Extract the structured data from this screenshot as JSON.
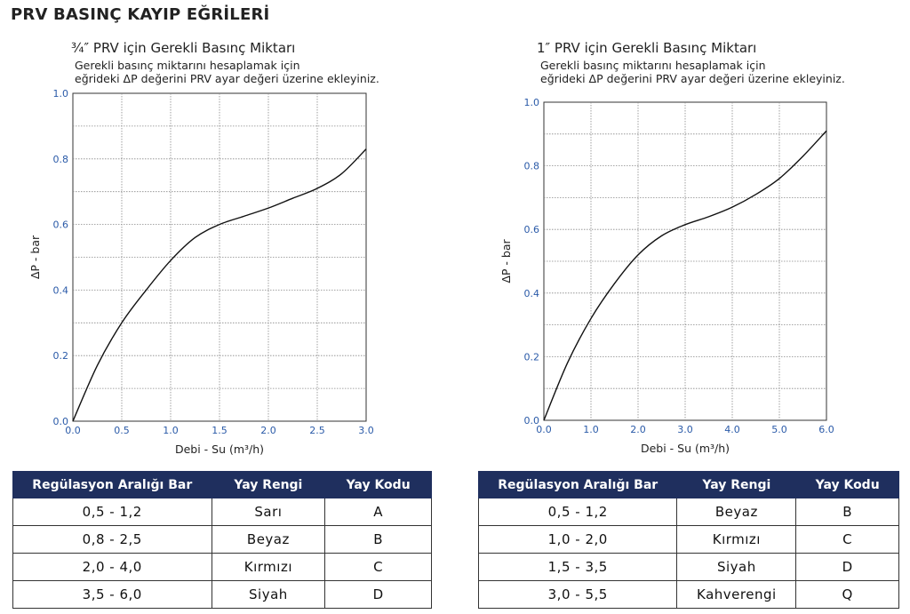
{
  "page_title": "PRV BASINÇ KAYIP EĞRİLERİ",
  "chart_data": [
    {
      "type": "line",
      "title": "¾″ PRV için Gerekli Basınç Miktarı",
      "note_line1": "Gerekli basınç miktarını hesaplamak için",
      "note_line2": "eğrideki ΔP değerini PRV ayar değeri üzerine ekleyiniz.",
      "xlabel": "Debi - Su (m³/h)",
      "ylabel": "ΔP - bar",
      "xlim": [
        0,
        3
      ],
      "ylim": [
        0,
        1
      ],
      "x_ticks": [
        "0.0",
        "0.5",
        "1.0",
        "1.5",
        "2.0",
        "2.5",
        "3.0"
      ],
      "y_ticks": [
        "0.0",
        "0.2",
        "0.4",
        "0.6",
        "0.8",
        "1.0"
      ],
      "grid": true,
      "series": [
        {
          "x": [
            0,
            0.25,
            0.5,
            0.75,
            1.0,
            1.25,
            1.5,
            1.75,
            2.0,
            2.25,
            2.5,
            2.75,
            3.0
          ],
          "y": [
            0,
            0.17,
            0.3,
            0.4,
            0.49,
            0.56,
            0.6,
            0.625,
            0.65,
            0.68,
            0.71,
            0.755,
            0.83
          ]
        }
      ]
    },
    {
      "type": "line",
      "title": "1″ PRV için Gerekli Basınç Miktarı",
      "note_line1": "Gerekli basınç miktarını hesaplamak için",
      "note_line2": "eğrideki ΔP değerini PRV ayar değeri üzerine ekleyiniz.",
      "xlabel": "Debi - Su (m³/h)",
      "ylabel": "ΔP - bar",
      "xlim": [
        0,
        6
      ],
      "ylim": [
        0,
        1
      ],
      "x_ticks": [
        "0.0",
        "1.0",
        "2.0",
        "3.0",
        "4.0",
        "5.0",
        "6.0"
      ],
      "y_ticks": [
        "0.0",
        "0.2",
        "0.4",
        "0.6",
        "0.8",
        "1.0"
      ],
      "grid": true,
      "series": [
        {
          "x": [
            0,
            0.5,
            1.0,
            1.5,
            2.0,
            2.5,
            3.0,
            3.5,
            4.0,
            4.5,
            5.0,
            5.5,
            6.0
          ],
          "y": [
            0,
            0.18,
            0.32,
            0.43,
            0.52,
            0.58,
            0.615,
            0.64,
            0.67,
            0.71,
            0.76,
            0.83,
            0.91
          ]
        }
      ]
    }
  ],
  "tables": [
    {
      "headers": [
        "Regülasyon Aralığı Bar",
        "Yay Rengi",
        "Yay Kodu"
      ],
      "rows": [
        [
          "0,5 - 1,2",
          "Sarı",
          "A"
        ],
        [
          "0,8 - 2,5",
          "Beyaz",
          "B"
        ],
        [
          "2,0 - 4,0",
          "Kırmızı",
          "C"
        ],
        [
          "3,5 - 6,0",
          "Siyah",
          "D"
        ]
      ]
    },
    {
      "headers": [
        "Regülasyon Aralığı Bar",
        "Yay Rengi",
        "Yay Kodu"
      ],
      "rows": [
        [
          "0,5 - 1,2",
          "Beyaz",
          "B"
        ],
        [
          "1,0 - 2,0",
          "Kırmızı",
          "C"
        ],
        [
          "1,5 - 3,5",
          "Siyah",
          "D"
        ],
        [
          "3,0 - 5,5",
          "Kahverengi",
          "Q"
        ]
      ]
    }
  ],
  "colors": {
    "tick_text": "#2a5aa8",
    "header_bg": "#1f2f5e",
    "curve": "#111111",
    "grid": "#888888"
  }
}
